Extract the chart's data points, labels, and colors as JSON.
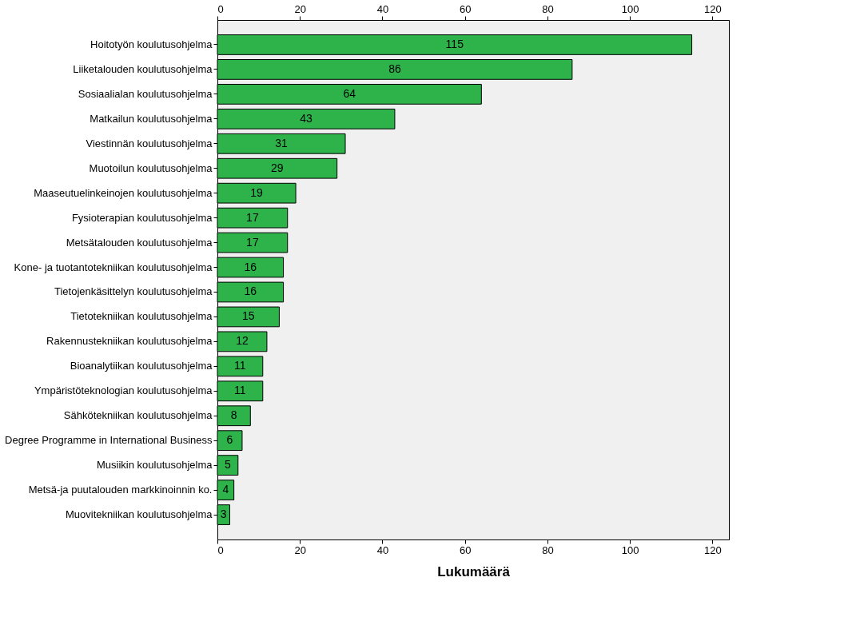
{
  "chart_data": {
    "type": "bar",
    "orientation": "horizontal",
    "xlabel": "Lukumäärä",
    "categories": [
      "Hoitotyön koulutusohjelma",
      "Liiketalouden koulutusohjelma",
      "Sosiaalialan koulutusohjelma",
      "Matkailun koulutusohjelma",
      "Viestinnän koulutusohjelma",
      "Muotoilun koulutusohjelma",
      "Maaseutuelinkeinojen koulutusohjelma",
      "Fysioterapian koulutusohjelma",
      "Metsätalouden koulutusohjelma",
      "Kone- ja tuotantotekniikan koulutusohjelma",
      "Tietojenkäsittelyn koulutusohjelma",
      "Tietotekniikan koulutusohjelma",
      "Rakennustekniikan koulutusohjelma",
      "Bioanalytiikan koulutusohjelma",
      "Ympäristöteknologian koulutusohjelma",
      "Sähkötekniikan koulutusohjelma",
      "Degree Programme in International Business",
      "Musiikin koulutusohjelma",
      "Metsä-ja puutalouden markkinoinnin ko.",
      "Muovitekniikan koulutusohjelma"
    ],
    "values": [
      115,
      86,
      64,
      43,
      31,
      29,
      19,
      17,
      17,
      16,
      16,
      15,
      12,
      11,
      11,
      8,
      6,
      5,
      4,
      3
    ],
    "color": "#2db34a",
    "data_labels": true,
    "grid": false,
    "xlim": [
      0,
      124
    ],
    "xticks": [
      0,
      20,
      40,
      60,
      80,
      100,
      120
    ],
    "x2lim": [
      0,
      124
    ],
    "x2ticks": [
      0,
      20,
      40,
      60,
      80,
      100,
      120
    ]
  }
}
